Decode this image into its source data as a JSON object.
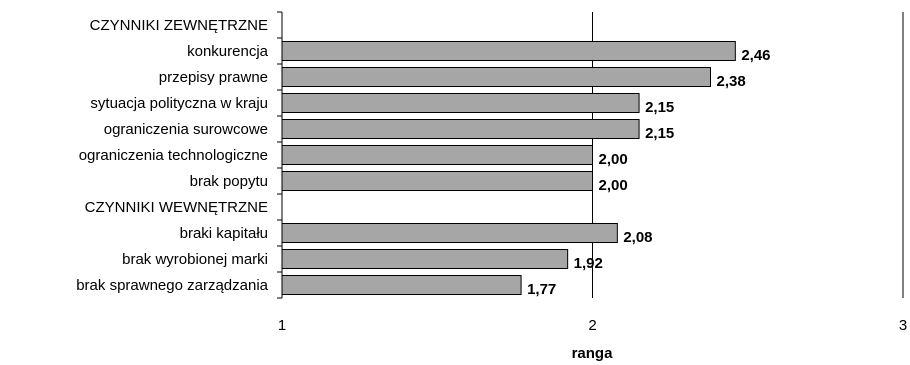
{
  "chart_data": {
    "type": "bar",
    "orientation": "horizontal",
    "title": "",
    "xlabel": "ranga",
    "ylabel": "",
    "xlim": [
      1,
      3
    ],
    "xticks": [
      "1",
      "2",
      "3"
    ],
    "grid": "vertical",
    "legend": "none",
    "bar_color": "#a6a6a6",
    "categories": [
      "CZYNNIKI ZEWNĘTRZNE",
      "konkurencja",
      "przepisy prawne",
      "sytuacja polityczna w kraju",
      "ograniczenia surowcowe",
      "ograniczenia technologiczne",
      "brak popytu",
      "CZYNNIKI WEWNĘTRZNE",
      "braki kapitału",
      "brak wyrobionej marki",
      "brak sprawnego zarządzania"
    ],
    "values": [
      null,
      2.46,
      2.38,
      2.15,
      2.15,
      2.0,
      2.0,
      null,
      2.08,
      1.92,
      1.77
    ],
    "value_labels": [
      "",
      "2,46",
      "2,38",
      "2,15",
      "2,15",
      "2,00",
      "2,00",
      "",
      "2,08",
      "1,92",
      "1,77"
    ]
  }
}
